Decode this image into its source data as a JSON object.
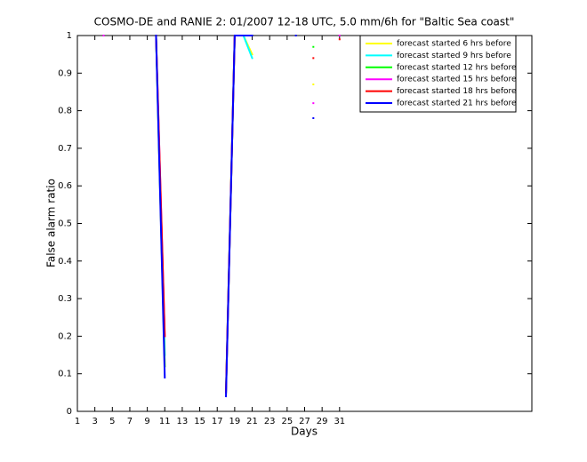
{
  "chart_data": {
    "type": "line",
    "title": "COSMO-DE and RANIE 2: 01/2007 12-18 UTC, 5.0 mm/6h for \"Baltic Sea coast\"",
    "x_label": "Days",
    "y_label": "False alarm ratio",
    "x": [
      1,
      2,
      3,
      4,
      5,
      6,
      7,
      8,
      9,
      10,
      11,
      12,
      13,
      14,
      15,
      16,
      17,
      18,
      19,
      20,
      21,
      22,
      23,
      24,
      25,
      26,
      27,
      28,
      29,
      30,
      31
    ],
    "xlim": [
      1,
      53
    ],
    "xticks": [
      1,
      3,
      5,
      7,
      9,
      11,
      13,
      15,
      17,
      19,
      21,
      23,
      25,
      27,
      29,
      31
    ],
    "ylim": [
      0,
      1
    ],
    "yticks": [
      0,
      0.1,
      0.2,
      0.3,
      0.4,
      0.5,
      0.6,
      0.7,
      0.8,
      0.9,
      1
    ],
    "legend_location": "northeast",
    "series": [
      {
        "name": "forecast started 6 hrs before",
        "color": "#ffff00",
        "values": [
          null,
          null,
          null,
          null,
          null,
          null,
          null,
          null,
          null,
          1,
          0.12,
          null,
          null,
          null,
          null,
          null,
          null,
          0.05,
          1,
          1,
          0.95,
          null,
          null,
          null,
          null,
          null,
          null,
          0.87,
          null,
          null,
          null
        ]
      },
      {
        "name": "forecast started 9 hrs before",
        "color": "#00ffff",
        "values": [
          null,
          null,
          null,
          null,
          null,
          null,
          null,
          null,
          null,
          1,
          0.15,
          null,
          null,
          null,
          null,
          null,
          null,
          0.05,
          1,
          1,
          0.94,
          null,
          null,
          null,
          null,
          null,
          null,
          null,
          null,
          null,
          null
        ]
      },
      {
        "name": "forecast started 12 hrs before",
        "color": "#00ff00",
        "values": [
          null,
          null,
          null,
          null,
          null,
          null,
          null,
          null,
          null,
          1,
          0.12,
          null,
          null,
          null,
          null,
          null,
          null,
          0.05,
          1,
          1,
          null,
          null,
          null,
          null,
          null,
          null,
          null,
          0.97,
          null,
          null,
          null
        ]
      },
      {
        "name": "forecast started 15 hrs before",
        "color": "#ff00ff",
        "values": [
          null,
          null,
          null,
          1,
          null,
          null,
          null,
          null,
          null,
          1,
          0.2,
          null,
          null,
          null,
          null,
          null,
          null,
          0.05,
          1,
          null,
          null,
          null,
          null,
          null,
          null,
          null,
          null,
          0.82,
          null,
          null,
          1
        ]
      },
      {
        "name": "forecast started 18 hrs before",
        "color": "#ff0000",
        "values": [
          null,
          null,
          null,
          null,
          null,
          null,
          null,
          null,
          null,
          1,
          0.2,
          null,
          null,
          null,
          null,
          null,
          null,
          0.05,
          1,
          null,
          null,
          null,
          null,
          null,
          null,
          null,
          null,
          0.94,
          null,
          null,
          0.99
        ]
      },
      {
        "name": "forecast started 21 hrs before",
        "color": "#0000ff",
        "values": [
          null,
          null,
          null,
          null,
          null,
          null,
          null,
          null,
          null,
          1,
          0.09,
          null,
          null,
          null,
          null,
          null,
          null,
          0.04,
          1,
          1,
          1,
          null,
          null,
          null,
          null,
          1,
          null,
          0.78,
          null,
          null,
          null
        ]
      }
    ]
  }
}
